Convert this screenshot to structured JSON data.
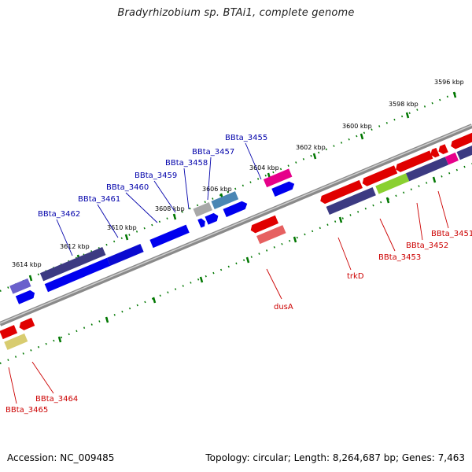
{
  "title": "Bradyrhizobium sp. BTAi1, complete genome",
  "footer": {
    "accession": "Accession: NC_009485",
    "summary": "Topology: circular; Length: 8,264,687 bp; Genes: 7,463"
  },
  "ticks_top": [
    {
      "label": "3596 kbp"
    },
    {
      "label": "3598 kbp"
    },
    {
      "label": "3600 kbp"
    },
    {
      "label": "3602 kbp"
    },
    {
      "label": "3604 kbp"
    },
    {
      "label": "3606 kbp"
    },
    {
      "label": "3608 kbp"
    },
    {
      "label": "3610 kbp"
    },
    {
      "label": "3612 kbp"
    },
    {
      "label": "3614 kbp"
    }
  ],
  "genes_top_labels": [
    {
      "name": "BBta_3455"
    },
    {
      "name": "BBta_3457"
    },
    {
      "name": "BBta_3458"
    },
    {
      "name": "BBta_3459"
    },
    {
      "name": "BBta_3460"
    },
    {
      "name": "BBta_3461"
    },
    {
      "name": "BBta_3462"
    }
  ],
  "genes_bottom_labels": [
    {
      "name": "BBta_3451"
    },
    {
      "name": "BBta_3452"
    },
    {
      "name": "BBta_3453"
    },
    {
      "name": "trkD"
    },
    {
      "name": "dusA"
    },
    {
      "name": "BBta_3464"
    },
    {
      "name": "BBta_3465"
    }
  ],
  "colors": {
    "backbone": "#888888",
    "tick": "#007700",
    "label_top": "#0000aa",
    "label_bottom": "#cc0000"
  }
}
